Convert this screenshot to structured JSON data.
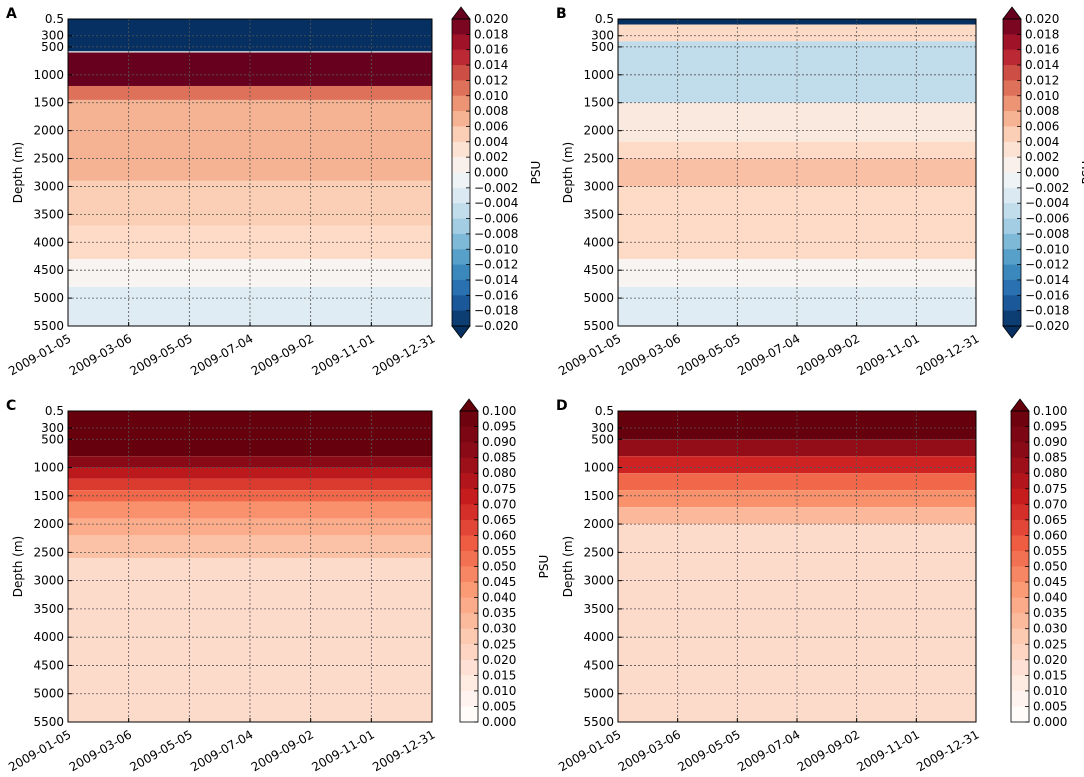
{
  "colors": {
    "diverging": [
      "#053061",
      "#2166ac",
      "#4393c3",
      "#92c5de",
      "#d1e5f0",
      "#f7f7f7",
      "#fddbc7",
      "#f4a582",
      "#d6604d",
      "#b2182b",
      "#67001f"
    ],
    "sequential": [
      "#ffffff",
      "#fee9df",
      "#fcc6ad",
      "#fb9a74",
      "#ef5e43",
      "#cb1d1f",
      "#8f0c18",
      "#67000d"
    ],
    "grid": "#555555"
  },
  "chart_data": [
    {
      "panel": "A",
      "type": "heatmap",
      "xlabel": "",
      "ylabel": "Depth (m)",
      "x_ticks": [
        "2009-01-05",
        "2009-03-06",
        "2009-05-05",
        "2009-07-04",
        "2009-09-02",
        "2009-11-01",
        "2009-12-31"
      ],
      "y_ticks": [
        "0.5",
        "300",
        "500",
        "1000",
        "1500",
        "2000",
        "2500",
        "3000",
        "3500",
        "4000",
        "4500",
        "5000",
        "5500"
      ],
      "colorbar_label": "PSU",
      "colorbar_ticks": [
        "0.020",
        "0.018",
        "0.016",
        "0.014",
        "0.012",
        "0.010",
        "0.008",
        "0.006",
        "0.004",
        "0.002",
        "0.000",
        "−0.002",
        "−0.004",
        "−0.006",
        "−0.008",
        "−0.010",
        "−0.012",
        "−0.014",
        "−0.016",
        "−0.018",
        "−0.020"
      ],
      "vmin": -0.02,
      "vmax": 0.02,
      "colormap": "diverging",
      "bands": [
        {
          "depth": [
            0.5,
            580
          ],
          "value": -0.02
        },
        {
          "depth": [
            580,
            600
          ],
          "value": 0.0
        },
        {
          "depth": [
            600,
            1200
          ],
          "value": 0.02
        },
        {
          "depth": [
            1200,
            1450
          ],
          "value": 0.011
        },
        {
          "depth": [
            1450,
            2900
          ],
          "value": 0.007
        },
        {
          "depth": [
            2900,
            3700
          ],
          "value": 0.005
        },
        {
          "depth": [
            3700,
            4300
          ],
          "value": 0.004
        },
        {
          "depth": [
            4300,
            4800
          ],
          "value": 0.0005
        },
        {
          "depth": [
            4800,
            5500
          ],
          "value": -0.0025
        }
      ]
    },
    {
      "panel": "B",
      "type": "heatmap",
      "xlabel": "",
      "ylabel": "Depth (m)",
      "x_ticks": [
        "2009-01-05",
        "2009-03-06",
        "2009-05-05",
        "2009-07-04",
        "2009-09-02",
        "2009-11-01",
        "2009-12-31"
      ],
      "y_ticks": [
        "0.5",
        "300",
        "500",
        "1000",
        "1500",
        "2000",
        "2500",
        "3000",
        "3500",
        "4000",
        "4500",
        "5000",
        "5500"
      ],
      "colorbar_label": "PSU",
      "colorbar_ticks": [
        "0.020",
        "0.018",
        "0.016",
        "0.014",
        "0.012",
        "0.010",
        "0.008",
        "0.006",
        "0.004",
        "0.002",
        "0.000",
        "−0.002",
        "−0.004",
        "−0.006",
        "−0.008",
        "−0.010",
        "−0.012",
        "−0.014",
        "−0.016",
        "−0.018",
        "−0.020"
      ],
      "vmin": -0.02,
      "vmax": 0.02,
      "colormap": "diverging",
      "bands": [
        {
          "depth": [
            0.5,
            100
          ],
          "value": -0.02
        },
        {
          "depth": [
            100,
            400
          ],
          "value": 0.004
        },
        {
          "depth": [
            400,
            1500
          ],
          "value": -0.005
        },
        {
          "depth": [
            1500,
            2200
          ],
          "value": 0.002
        },
        {
          "depth": [
            2200,
            2500
          ],
          "value": 0.004
        },
        {
          "depth": [
            2500,
            3000
          ],
          "value": 0.006
        },
        {
          "depth": [
            3000,
            4300
          ],
          "value": 0.004
        },
        {
          "depth": [
            4300,
            4800
          ],
          "value": 0.0005
        },
        {
          "depth": [
            4800,
            5500
          ],
          "value": -0.0025
        }
      ]
    },
    {
      "panel": "C",
      "type": "heatmap",
      "xlabel": "",
      "ylabel": "Depth (m)",
      "x_ticks": [
        "2009-01-05",
        "2009-03-06",
        "2009-05-05",
        "2009-07-04",
        "2009-09-02",
        "2009-11-01",
        "2009-12-31"
      ],
      "y_ticks": [
        "0.5",
        "300",
        "500",
        "1000",
        "1500",
        "2000",
        "2500",
        "3000",
        "3500",
        "4000",
        "4500",
        "5000",
        "5500"
      ],
      "colorbar_label": "PSU",
      "colorbar_ticks": [
        "0.100",
        "0.095",
        "0.090",
        "0.085",
        "0.080",
        "0.075",
        "0.070",
        "0.065",
        "0.060",
        "0.055",
        "0.050",
        "0.045",
        "0.040",
        "0.035",
        "0.030",
        "0.025",
        "0.020",
        "0.015",
        "0.010",
        "0.005",
        "0.000"
      ],
      "vmin": 0.0,
      "vmax": 0.1,
      "colormap": "sequential",
      "bands": [
        {
          "depth": [
            0.5,
            800
          ],
          "value": 0.1
        },
        {
          "depth": [
            800,
            1000
          ],
          "value": 0.088
        },
        {
          "depth": [
            1000,
            1200
          ],
          "value": 0.075
        },
        {
          "depth": [
            1200,
            1400
          ],
          "value": 0.065
        },
        {
          "depth": [
            1400,
            1600
          ],
          "value": 0.055
        },
        {
          "depth": [
            1600,
            1900
          ],
          "value": 0.045
        },
        {
          "depth": [
            1900,
            2200
          ],
          "value": 0.037
        },
        {
          "depth": [
            2200,
            2600
          ],
          "value": 0.03
        },
        {
          "depth": [
            2600,
            5500
          ],
          "value": 0.02
        }
      ]
    },
    {
      "panel": "D",
      "type": "heatmap",
      "xlabel": "",
      "ylabel": "Depth (m)",
      "x_ticks": [
        "2009-01-05",
        "2009-03-06",
        "2009-05-05",
        "2009-07-04",
        "2009-09-02",
        "2009-11-01",
        "2009-12-31"
      ],
      "y_ticks": [
        "0.5",
        "300",
        "500",
        "1000",
        "1500",
        "2000",
        "2500",
        "3000",
        "3500",
        "4000",
        "4500",
        "5000",
        "5500"
      ],
      "colorbar_label": "PSU",
      "colorbar_ticks": [
        "0.100",
        "0.095",
        "0.090",
        "0.085",
        "0.080",
        "0.075",
        "0.070",
        "0.065",
        "0.060",
        "0.055",
        "0.050",
        "0.045",
        "0.040",
        "0.035",
        "0.030",
        "0.025",
        "0.020",
        "0.015",
        "0.010",
        "0.005",
        "0.000"
      ],
      "vmin": 0.0,
      "vmax": 0.1,
      "colormap": "sequential",
      "bands": [
        {
          "depth": [
            0.5,
            500
          ],
          "value": 0.1
        },
        {
          "depth": [
            500,
            800
          ],
          "value": 0.085
        },
        {
          "depth": [
            800,
            1100
          ],
          "value": 0.07
        },
        {
          "depth": [
            1100,
            1400
          ],
          "value": 0.055
        },
        {
          "depth": [
            1400,
            1700
          ],
          "value": 0.045
        },
        {
          "depth": [
            1700,
            2000
          ],
          "value": 0.033
        },
        {
          "depth": [
            2000,
            5500
          ],
          "value": 0.02
        }
      ]
    }
  ]
}
